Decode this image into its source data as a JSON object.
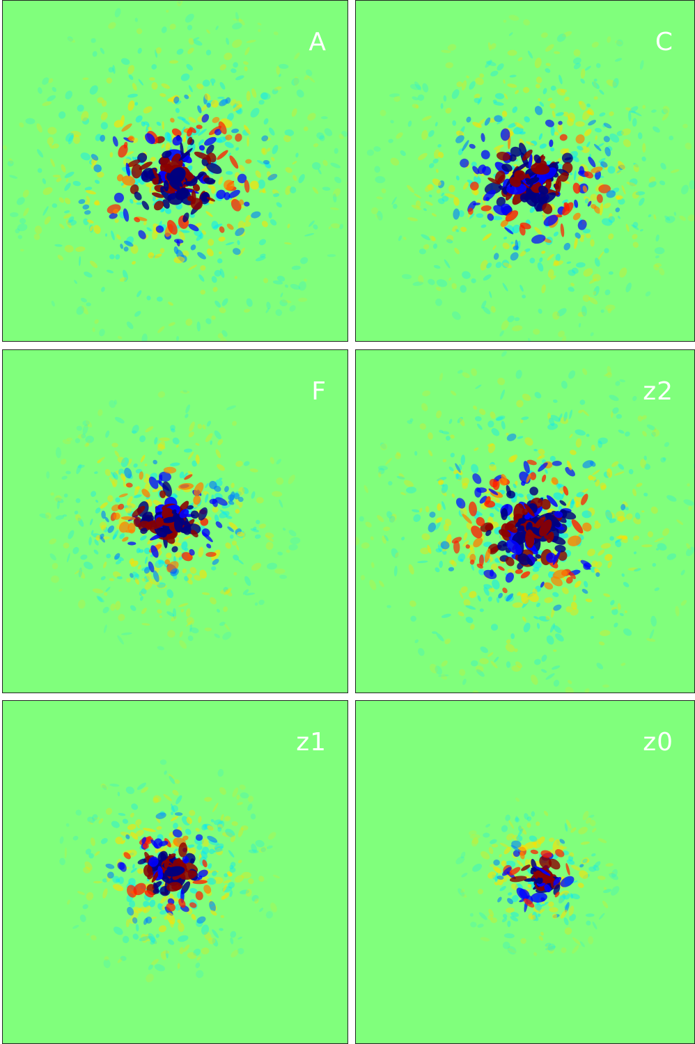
{
  "figure": {
    "colormap": "jet",
    "background_color": "#80ff7c",
    "panels": [
      {
        "label": "A",
        "core_color": "#8b0000",
        "spread": "large"
      },
      {
        "label": "C",
        "core_color": "#8b0000",
        "spread": "large"
      },
      {
        "label": "F",
        "core_color": "#8b0000",
        "spread": "medium"
      },
      {
        "label": "z2",
        "core_color": "#8b0000",
        "spread": "large"
      },
      {
        "label": "z1",
        "core_color": "#8b0000",
        "spread": "medium"
      },
      {
        "label": "z0",
        "core_color": "#8b0000",
        "spread": "small"
      }
    ]
  }
}
